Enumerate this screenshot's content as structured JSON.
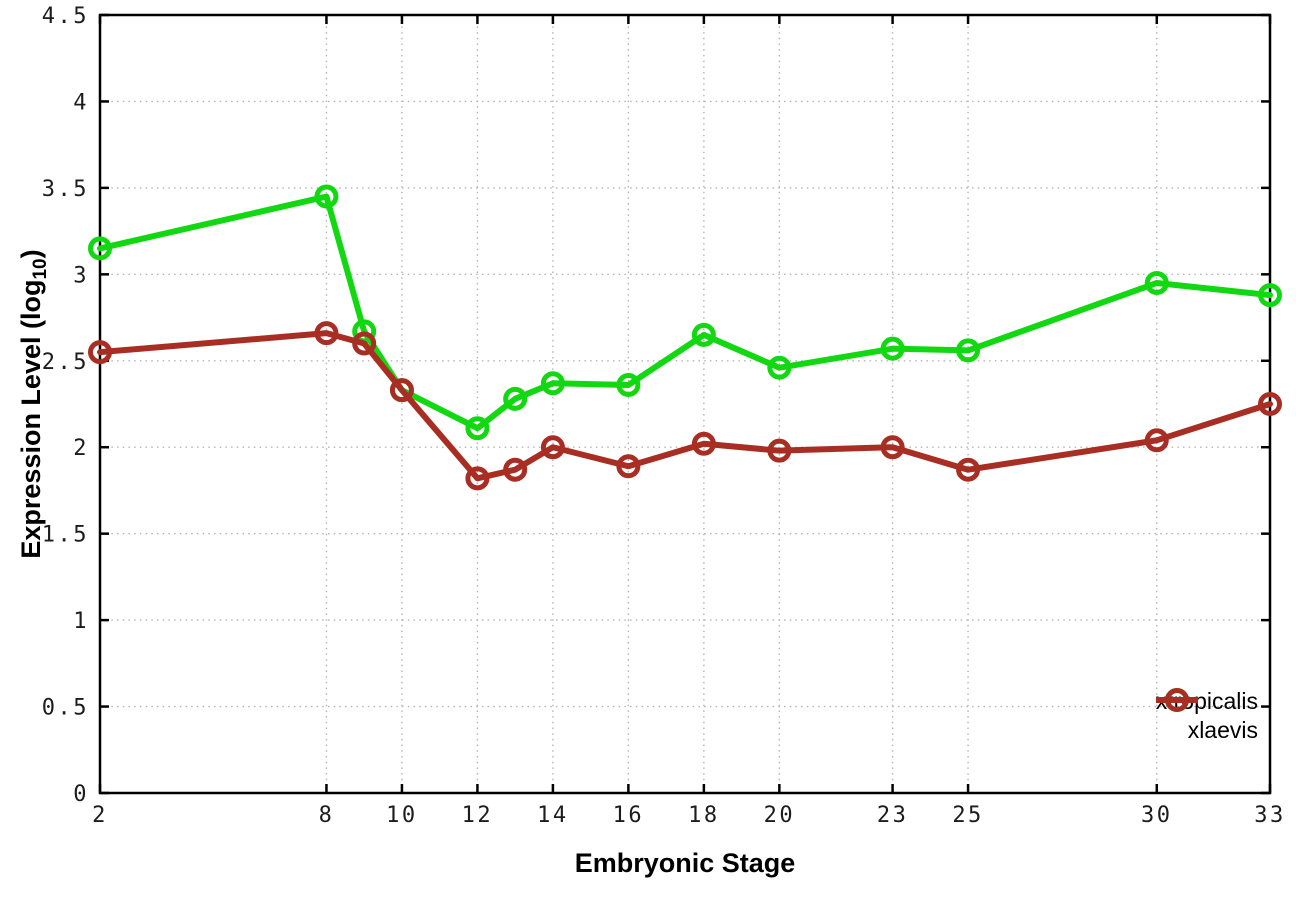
{
  "chart_data": {
    "type": "line",
    "title": "",
    "xlabel": "Embryonic Stage",
    "ylabel": "Expression Level (log10)",
    "ylabel_parts": {
      "prefix": "Expression Level (log",
      "sub": "10",
      "suffix": ")"
    },
    "xlim": [
      2,
      33
    ],
    "ylim": [
      0,
      4.5
    ],
    "xticks": [
      2,
      8,
      10,
      12,
      14,
      16,
      18,
      20,
      23,
      25,
      30,
      33
    ],
    "yticks": [
      0,
      0.5,
      1,
      1.5,
      2,
      2.5,
      3,
      3.5,
      4,
      4.5
    ],
    "grid": true,
    "legend_position": "bottom-right",
    "x": [
      2,
      8,
      9,
      10,
      12,
      13,
      14,
      16,
      18,
      20,
      23,
      25,
      30,
      33
    ],
    "series": [
      {
        "name": "xtropicalis",
        "color": "#12d812",
        "marker": "open-circle",
        "values": [
          3.15,
          3.45,
          2.67,
          2.33,
          2.11,
          2.28,
          2.37,
          2.36,
          2.65,
          2.46,
          2.57,
          2.56,
          2.95,
          2.88
        ]
      },
      {
        "name": "xlaevis",
        "color": "#a82e24",
        "marker": "open-circle",
        "values": [
          2.55,
          2.66,
          2.6,
          2.33,
          1.82,
          1.87,
          2.0,
          1.89,
          2.02,
          1.98,
          2.0,
          1.87,
          2.04,
          2.25
        ]
      }
    ]
  }
}
